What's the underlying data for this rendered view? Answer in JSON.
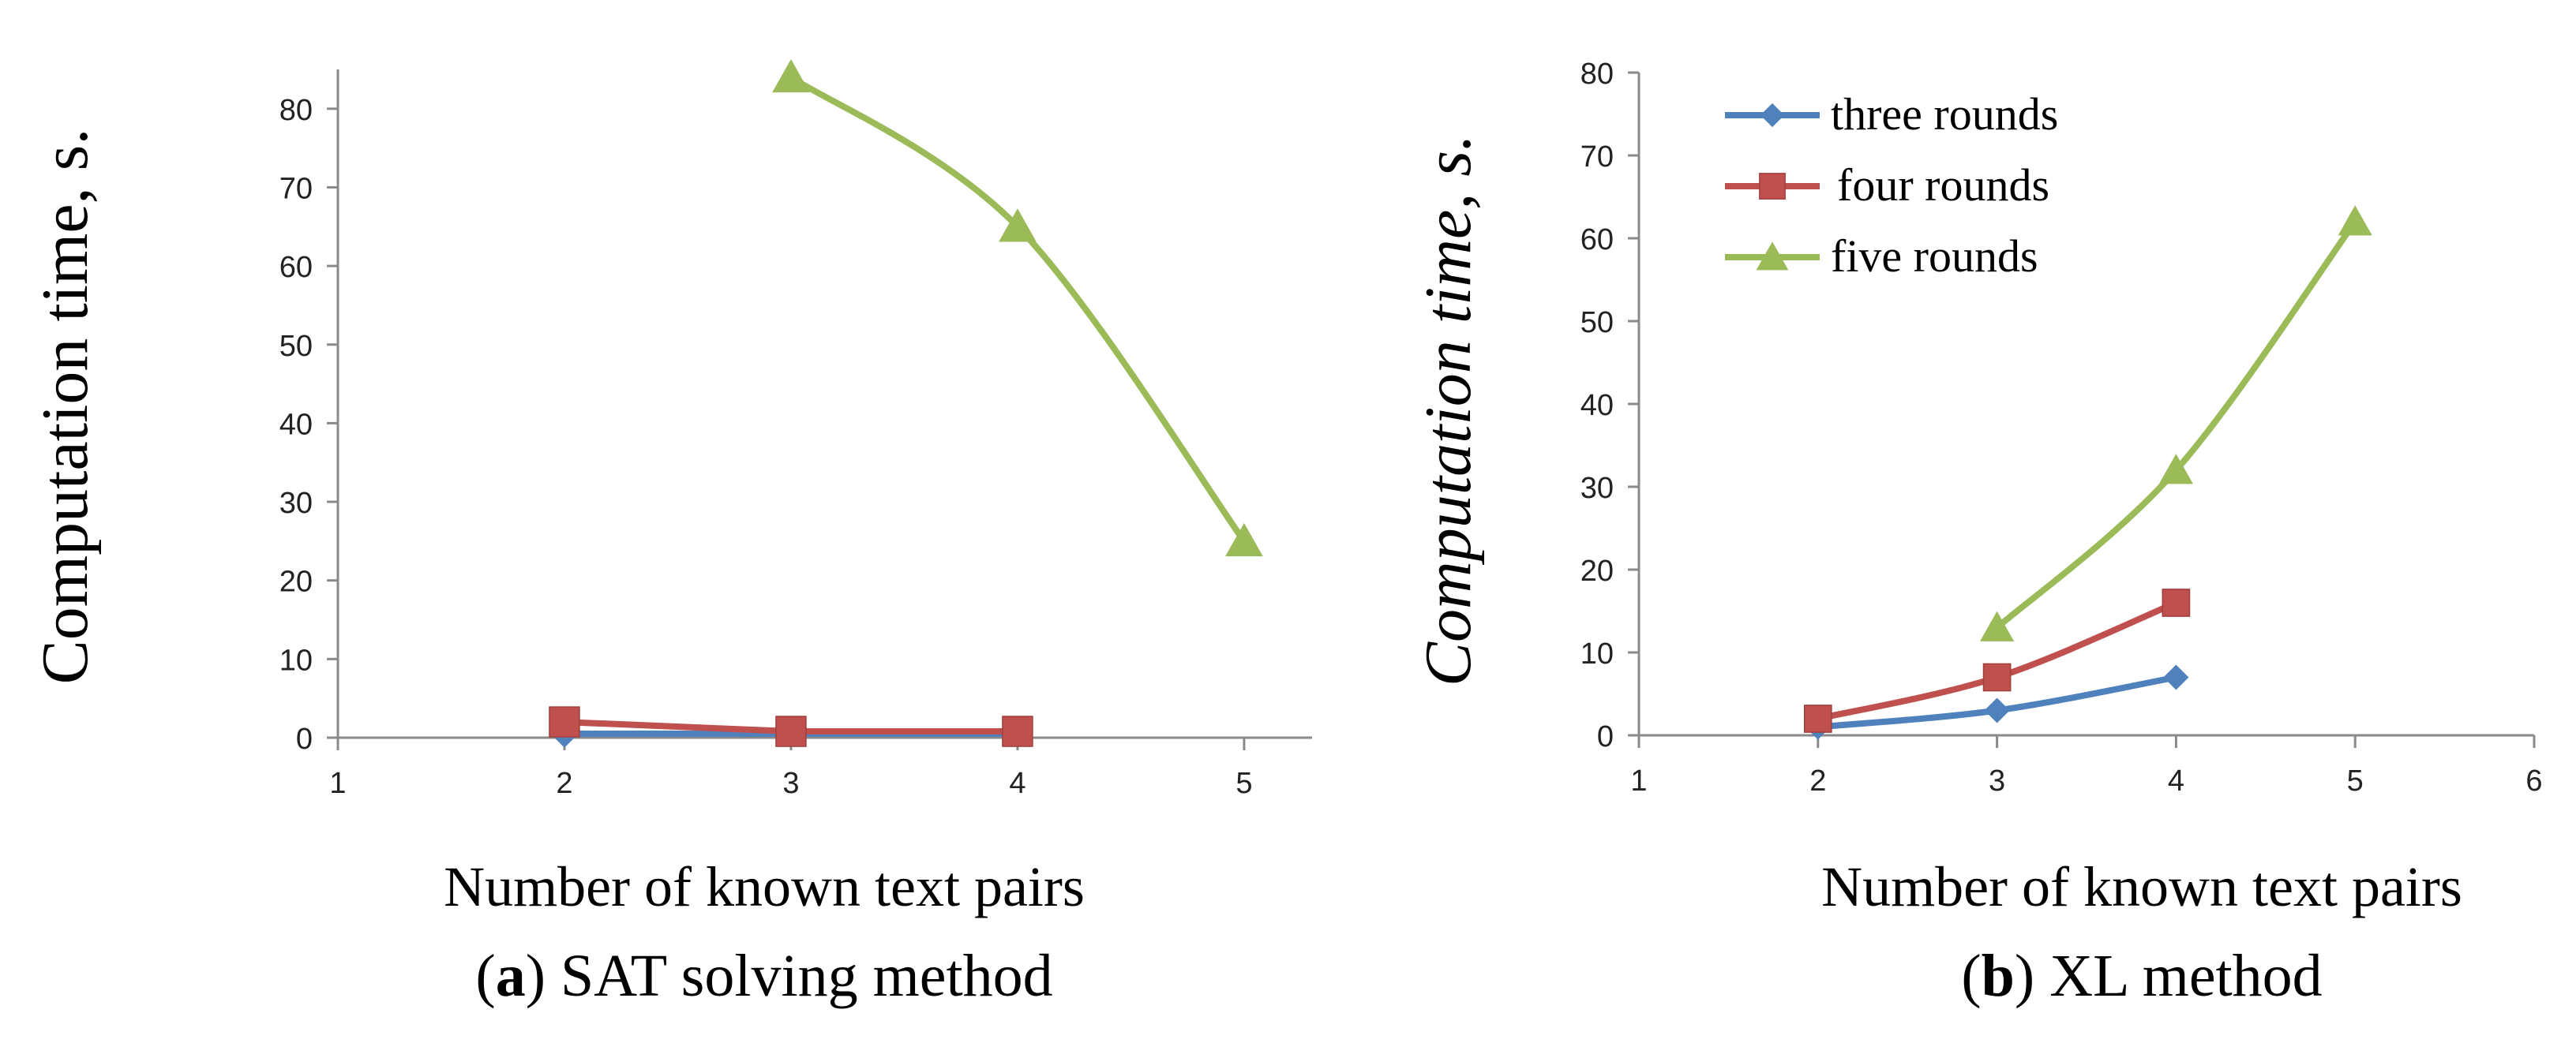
{
  "colors": {
    "three_rounds": "#4f81bd",
    "four_rounds": "#c0504d",
    "five_rounds": "#9bbb59",
    "axis": "#8a8a8a"
  },
  "chart_data": [
    {
      "type": "line",
      "panel_letter": "a",
      "caption_text": " SAT solving method",
      "xlabel": "Number of known text pairs",
      "ylabel": "Computation time, s.",
      "ylabel_italic": false,
      "xlim": [
        1,
        5.3
      ],
      "ylim": [
        0,
        85
      ],
      "xticks": [
        1,
        2,
        3,
        4,
        5
      ],
      "yticks": [
        0,
        10,
        20,
        30,
        40,
        50,
        60,
        70,
        80
      ],
      "legend": "none",
      "grid": false,
      "series": [
        {
          "name": "three rounds",
          "key": "three_rounds",
          "marker": "diamond",
          "smooth": false,
          "x": [
            2,
            3,
            4
          ],
          "y": [
            0.5,
            0.5,
            0.5
          ]
        },
        {
          "name": "four rounds",
          "key": "four_rounds",
          "marker": "square",
          "smooth": false,
          "x": [
            2,
            3,
            4
          ],
          "y": [
            2,
            0.8,
            0.8
          ]
        },
        {
          "name": "five rounds",
          "key": "five_rounds",
          "marker": "triangle",
          "smooth": true,
          "x": [
            3,
            4,
            5
          ],
          "y": [
            84,
            65,
            25
          ]
        }
      ]
    },
    {
      "type": "line",
      "panel_letter": "b",
      "caption_text": " XL method",
      "xlabel": "Number of known text pairs",
      "ylabel": "Computation time, s.",
      "ylabel_italic": true,
      "xlim": [
        1,
        6
      ],
      "ylim": [
        0,
        80
      ],
      "xticks": [
        1,
        2,
        3,
        4,
        5,
        6
      ],
      "yticks": [
        0,
        10,
        20,
        30,
        40,
        50,
        60,
        70,
        80
      ],
      "legend": "top-left",
      "grid": false,
      "series": [
        {
          "name": "three rounds",
          "key": "three_rounds",
          "marker": "diamond",
          "smooth": true,
          "x": [
            2,
            3,
            4
          ],
          "y": [
            1,
            3,
            7
          ]
        },
        {
          "name": "four rounds",
          "key": "four_rounds",
          "marker": "square",
          "smooth": true,
          "x": [
            2,
            3,
            4
          ],
          "y": [
            2,
            7,
            16
          ]
        },
        {
          "name": "five rounds",
          "key": "five_rounds",
          "marker": "triangle",
          "smooth": true,
          "x": [
            3,
            4,
            5
          ],
          "y": [
            13,
            32,
            62
          ]
        }
      ]
    }
  ]
}
